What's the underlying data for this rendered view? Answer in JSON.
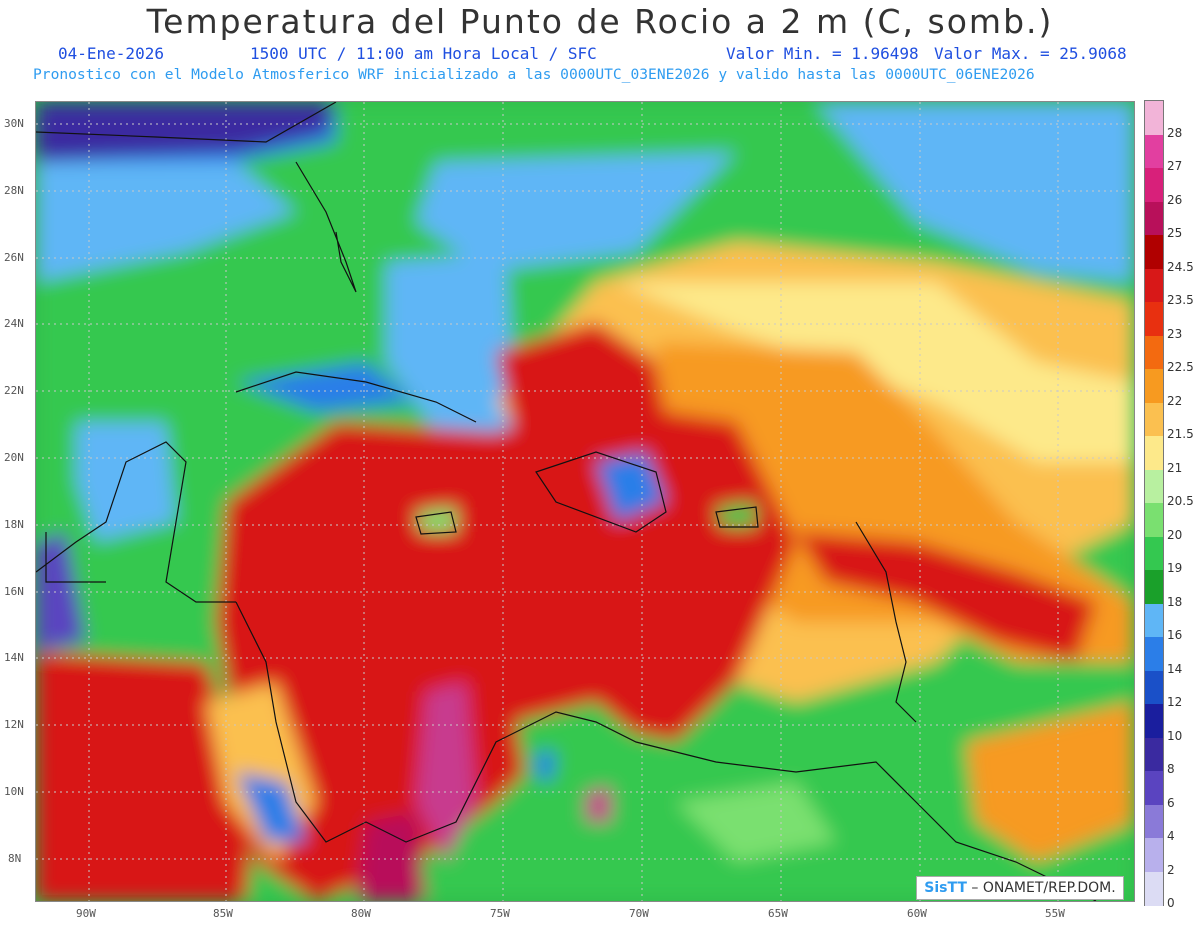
{
  "header": {
    "title": "Temperatura del Punto de Rocio a 2 m (C, somb.)",
    "date": "04-Ene-2026",
    "time": "1500 UTC / 11:00 am Hora Local / SFC",
    "vmin": "Valor Min. = 1.96498",
    "vmax": "Valor Max. = 25.9068",
    "model_line": "Pronostico con el Modelo Atmosferico WRF inicializado a las 0000UTC_03ENE2026 y valido hasta las  0000UTC_06ENE2026"
  },
  "map": {
    "lat_labels": [
      "30N",
      "28N",
      "26N",
      "24N",
      "22N",
      "20N",
      "18N",
      "16N",
      "14N",
      "12N",
      "10N",
      "8N"
    ],
    "lon_labels": [
      "90W",
      "85W",
      "80W",
      "75W",
      "70W",
      "65W",
      "60W",
      "55W"
    ]
  },
  "colorbar": {
    "labels": [
      "28",
      "27",
      "26",
      "25",
      "24.5",
      "23.5",
      "23",
      "22.5",
      "22",
      "21.5",
      "21",
      "20.5",
      "20",
      "19",
      "18",
      "16",
      "14",
      "12",
      "10",
      "8",
      "6",
      "4",
      "2",
      "0"
    ],
    "colors": [
      "#f2b4d8",
      "#e23fa0",
      "#d8207a",
      "#b8105a",
      "#b00000",
      "#d81818",
      "#e83010",
      "#f36a10",
      "#f79a20",
      "#fbc050",
      "#fde98a",
      "#b8f0a0",
      "#7ae070",
      "#34c850",
      "#1aa02a",
      "#5fb6f6",
      "#2b7ee8",
      "#1a50c8",
      "#1a1e9e",
      "#3a2aa0",
      "#5a44c0",
      "#8a7ad8",
      "#b8b0ec",
      "#dcdcf4"
    ]
  },
  "credit": {
    "sis": "SisTT",
    "rest": "– ONAMET/REP.DOM."
  }
}
